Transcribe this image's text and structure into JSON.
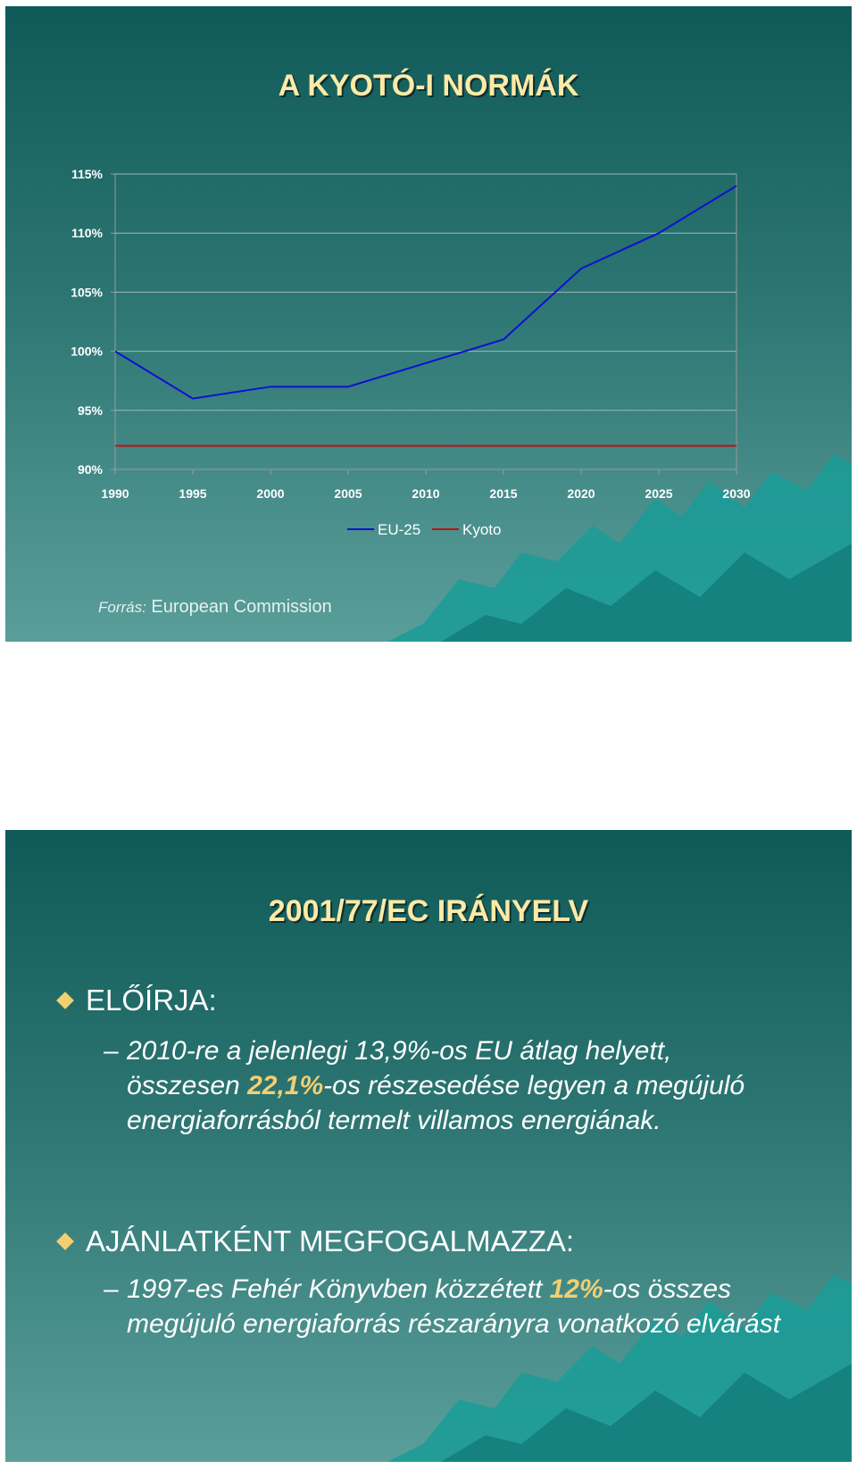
{
  "slide1": {
    "title": "A KYOTÓ-I NORMÁK",
    "source_label": "Forrás:",
    "source_text": "European Commission"
  },
  "chart_data": {
    "type": "line",
    "title": "",
    "xlabel": "",
    "ylabel": "",
    "x": [
      1990,
      1995,
      2000,
      2005,
      2010,
      2015,
      2020,
      2025,
      2030
    ],
    "x_tick_labels": [
      "1990",
      "1995",
      "2000",
      "2005",
      "2010",
      "2015",
      "2020",
      "2025",
      "2030"
    ],
    "y_tick_labels": [
      "90%",
      "95%",
      "100%",
      "105%",
      "110%",
      "115%"
    ],
    "y_ticks": [
      90,
      95,
      100,
      105,
      110,
      115
    ],
    "ylim": [
      90,
      115
    ],
    "xlim": [
      1990,
      2030
    ],
    "grid": true,
    "legend_position": "bottom",
    "series": [
      {
        "name": "EU-25",
        "color": "#1010d0",
        "values": [
          100,
          96,
          97,
          97,
          99,
          101,
          107,
          110,
          114
        ]
      },
      {
        "name": "Kyoto",
        "color": "#c01010",
        "values": [
          92,
          92,
          92,
          92,
          92,
          92,
          92,
          92,
          92
        ]
      }
    ]
  },
  "slide2": {
    "title": "2001/77/EC IRÁNYELV",
    "bullet1": "ELŐÍRJA:",
    "sub1_dash": "–",
    "sub1_part1": "2010-re a jelenlegi 13,9%-os EU átlag helyett, összesen ",
    "sub1_highlight": "22,1%",
    "sub1_part2": "-os részesedése legyen a megújuló energiaforrásból termelt villamos energiának.",
    "bullet2": "AJÁNLATKÉNT MEGFOGALMAZZA:",
    "sub2_dash": "–",
    "sub2_part1": "1997-es Fehér Könyvben közzétett ",
    "sub2_highlight": "12%",
    "sub2_part2": "-os összes megújuló energiaforrás részarányra vonatkozó elvárást"
  }
}
